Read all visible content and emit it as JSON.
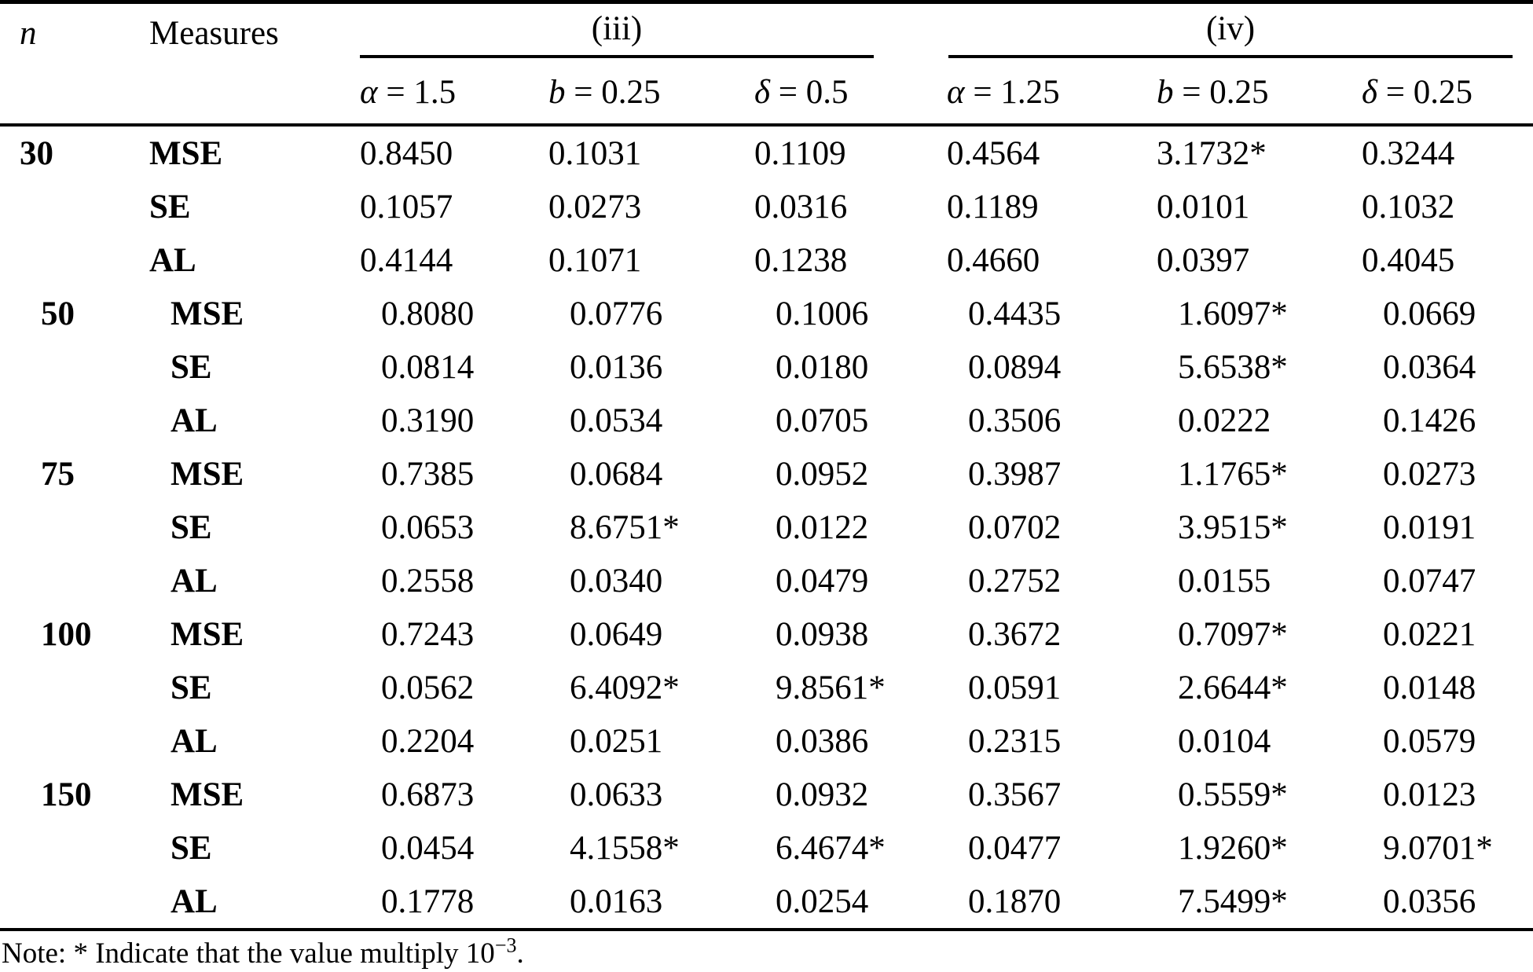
{
  "table": {
    "n_header": "n",
    "measures_header": "Measures",
    "group_span_headers": [
      {
        "label": "(iii)"
      },
      {
        "label": "(iv)"
      }
    ],
    "param_headers": [
      {
        "symbol": "α",
        "value": "1.5"
      },
      {
        "symbol": "b",
        "value": "0.25"
      },
      {
        "symbol": "δ",
        "value": "0.5"
      },
      {
        "symbol": "α",
        "value": "1.25"
      },
      {
        "symbol": "b",
        "value": "0.25"
      },
      {
        "symbol": "δ",
        "value": "0.25"
      }
    ],
    "groups": [
      {
        "n": "30",
        "indent": false,
        "rows": [
          {
            "measure": "MSE",
            "values": [
              "0.8450",
              "0.1031",
              "0.1109",
              "0.4564",
              "3.1732*",
              "0.3244"
            ]
          },
          {
            "measure": "SE",
            "values": [
              "0.1057",
              "0.0273",
              "0.0316",
              "0.1189",
              "0.0101",
              "0.1032"
            ]
          },
          {
            "measure": "AL",
            "values": [
              "0.4144",
              "0.1071",
              "0.1238",
              "0.4660",
              "0.0397",
              "0.4045"
            ]
          }
        ]
      },
      {
        "n": "50",
        "indent": true,
        "rows": [
          {
            "measure": "MSE",
            "values": [
              "0.8080",
              "0.0776",
              "0.1006",
              "0.4435",
              "1.6097*",
              "0.0669"
            ]
          },
          {
            "measure": "SE",
            "values": [
              "0.0814",
              "0.0136",
              "0.0180",
              "0.0894",
              "5.6538*",
              "0.0364"
            ]
          },
          {
            "measure": "AL",
            "values": [
              "0.3190",
              "0.0534",
              "0.0705",
              "0.3506",
              "0.0222",
              "0.1426"
            ]
          }
        ]
      },
      {
        "n": "75",
        "indent": true,
        "rows": [
          {
            "measure": "MSE",
            "values": [
              "0.7385",
              "0.0684",
              "0.0952",
              "0.3987",
              "1.1765*",
              "0.0273"
            ]
          },
          {
            "measure": "SE",
            "values": [
              "0.0653",
              "8.6751*",
              "0.0122",
              "0.0702",
              "3.9515*",
              "0.0191"
            ]
          },
          {
            "measure": "AL",
            "values": [
              "0.2558",
              "0.0340",
              "0.0479",
              "0.2752",
              "0.0155",
              "0.0747"
            ]
          }
        ]
      },
      {
        "n": "100",
        "indent": true,
        "rows": [
          {
            "measure": "MSE",
            "values": [
              "0.7243",
              "0.0649",
              "0.0938",
              "0.3672",
              "0.7097*",
              "0.0221"
            ]
          },
          {
            "measure": "SE",
            "values": [
              "0.0562",
              "6.4092*",
              "9.8561*",
              "0.0591",
              "2.6644*",
              "0.0148"
            ]
          },
          {
            "measure": "AL",
            "values": [
              "0.2204",
              "0.0251",
              "0.0386",
              "0.2315",
              "0.0104",
              "0.0579"
            ]
          }
        ]
      },
      {
        "n": "150",
        "indent": true,
        "rows": [
          {
            "measure": "MSE",
            "values": [
              "0.6873",
              "0.0633",
              "0.0932",
              "0.3567",
              "0.5559*",
              "0.0123"
            ]
          },
          {
            "measure": "SE",
            "values": [
              "0.0454",
              "4.1558*",
              "6.4674*",
              "0.0477",
              "1.9260*",
              "9.0701*"
            ]
          },
          {
            "measure": "AL",
            "values": [
              "0.1778",
              "0.0163",
              "0.0254",
              "0.1870",
              "7.5499*",
              "0.0356"
            ]
          }
        ]
      }
    ]
  },
  "note": {
    "text": "Note: * Indicate that the value multiply 10",
    "exponent": "−3",
    "period": "."
  }
}
